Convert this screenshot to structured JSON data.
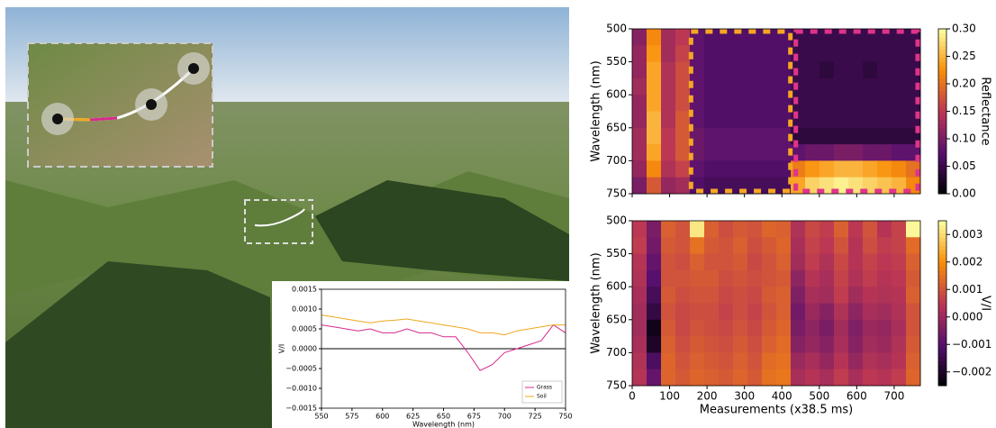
{
  "chart_data": [
    {
      "type": "line",
      "xlabel": "Wavelength (nm)",
      "ylabel": "V/I",
      "x": [
        550,
        560,
        570,
        580,
        590,
        600,
        610,
        620,
        630,
        640,
        650,
        660,
        670,
        680,
        690,
        700,
        710,
        720,
        730,
        740,
        750
      ],
      "series": [
        {
          "name": "Grass",
          "color": "#d62a8c",
          "values": [
            0.0006,
            0.00055,
            0.0005,
            0.00045,
            0.0005,
            0.0004,
            0.0004,
            0.0005,
            0.0004,
            0.0004,
            0.0003,
            0.0003,
            -0.0001,
            -0.00055,
            -0.0004,
            -0.0001,
            0.0,
            0.0001,
            0.0002,
            0.0006,
            0.0004
          ]
        },
        {
          "name": "Soil",
          "color": "#f0a81e",
          "values": [
            0.00085,
            0.0008,
            0.00075,
            0.0007,
            0.00065,
            0.0007,
            0.00072,
            0.00075,
            0.0007,
            0.00065,
            0.0006,
            0.00055,
            0.0005,
            0.0004,
            0.0004,
            0.00035,
            0.00045,
            0.0005,
            0.00055,
            0.0006,
            0.0006
          ]
        }
      ],
      "xlim": [
        550,
        750
      ],
      "xticks": [
        550,
        575,
        600,
        625,
        650,
        675,
        700,
        725,
        750
      ],
      "ylim": [
        -0.0015,
        0.0015
      ],
      "yticks": [
        {
          "value": -0.0015,
          "label": "−0.0015"
        },
        {
          "value": -0.001,
          "label": "−0.0010"
        },
        {
          "value": -0.0005,
          "label": "−0.0005"
        },
        {
          "value": 0,
          "label": "0.0000"
        },
        {
          "value": 0.0005,
          "label": "0.0005"
        },
        {
          "value": 0.001,
          "label": "0.0010"
        },
        {
          "value": 0.0015,
          "label": "0.0015"
        }
      ],
      "hline": 0,
      "legend": "lower right"
    },
    {
      "type": "heatmap",
      "ylabel": "Wavelength (nm)",
      "colorbar_label": "Reflectance",
      "colormap": "inferno",
      "bins_x": [
        0,
        38.5,
        77,
        115.5,
        154,
        192.5,
        231,
        269.5,
        308,
        346.5,
        385,
        423.5,
        462,
        500.5,
        539,
        577.5,
        616,
        654.5,
        693,
        731.5,
        770
      ],
      "bins_y": [
        500,
        525,
        550,
        575,
        600,
        625,
        650,
        675,
        700,
        725,
        750
      ],
      "values": [
        [
          0.11,
          0.22,
          0.13,
          0.15,
          0.08,
          0.07,
          0.07,
          0.07,
          0.07,
          0.07,
          0.07,
          0.05,
          0.05,
          0.05,
          0.05,
          0.05,
          0.05,
          0.05,
          0.05,
          0.05
        ],
        [
          0.12,
          0.23,
          0.13,
          0.16,
          0.08,
          0.07,
          0.07,
          0.07,
          0.07,
          0.07,
          0.07,
          0.05,
          0.05,
          0.05,
          0.05,
          0.05,
          0.05,
          0.05,
          0.05,
          0.05
        ],
        [
          0.12,
          0.24,
          0.14,
          0.17,
          0.08,
          0.07,
          0.07,
          0.07,
          0.07,
          0.07,
          0.07,
          0.05,
          0.05,
          0.04,
          0.05,
          0.05,
          0.04,
          0.05,
          0.05,
          0.05
        ],
        [
          0.13,
          0.24,
          0.14,
          0.17,
          0.08,
          0.07,
          0.07,
          0.07,
          0.07,
          0.07,
          0.07,
          0.05,
          0.05,
          0.05,
          0.05,
          0.05,
          0.05,
          0.05,
          0.05,
          0.05
        ],
        [
          0.12,
          0.24,
          0.14,
          0.17,
          0.08,
          0.07,
          0.07,
          0.07,
          0.07,
          0.07,
          0.07,
          0.05,
          0.05,
          0.05,
          0.05,
          0.05,
          0.05,
          0.05,
          0.05,
          0.05
        ],
        [
          0.12,
          0.25,
          0.14,
          0.18,
          0.08,
          0.07,
          0.07,
          0.07,
          0.07,
          0.07,
          0.07,
          0.05,
          0.05,
          0.05,
          0.05,
          0.05,
          0.05,
          0.05,
          0.05,
          0.05
        ],
        [
          0.13,
          0.25,
          0.15,
          0.18,
          0.09,
          0.08,
          0.08,
          0.08,
          0.08,
          0.08,
          0.08,
          0.04,
          0.04,
          0.04,
          0.04,
          0.04,
          0.04,
          0.04,
          0.04,
          0.04
        ],
        [
          0.13,
          0.24,
          0.15,
          0.18,
          0.09,
          0.08,
          0.08,
          0.08,
          0.08,
          0.08,
          0.08,
          0.08,
          0.09,
          0.09,
          0.1,
          0.1,
          0.09,
          0.09,
          0.08,
          0.08
        ],
        [
          0.12,
          0.22,
          0.14,
          0.16,
          0.08,
          0.07,
          0.07,
          0.07,
          0.07,
          0.07,
          0.07,
          0.21,
          0.23,
          0.24,
          0.25,
          0.25,
          0.24,
          0.23,
          0.22,
          0.2
        ],
        [
          0.1,
          0.18,
          0.12,
          0.13,
          0.07,
          0.06,
          0.06,
          0.06,
          0.06,
          0.06,
          0.06,
          0.24,
          0.27,
          0.28,
          0.29,
          0.28,
          0.27,
          0.26,
          0.25,
          0.22
        ]
      ],
      "xlim": [
        0,
        770
      ],
      "xticks": [
        0,
        100,
        200,
        300,
        400,
        500,
        600,
        700
      ],
      "show_xtick_labels": false,
      "ylim": [
        750,
        500
      ],
      "yticks": [
        500,
        550,
        600,
        650,
        700,
        750
      ],
      "clim": [
        0,
        0.3
      ],
      "cticks": [
        {
          "value": 0,
          "label": "0.00"
        },
        0.05,
        {
          "value": 0.1,
          "label": "0.10"
        },
        0.15,
        {
          "value": 0.2,
          "label": "0.20"
        },
        0.25,
        {
          "value": 0.3,
          "label": "0.30"
        }
      ],
      "regions": [
        {
          "x": [
            150,
            430
          ],
          "color": "#f5a623"
        },
        {
          "x": [
            430,
            770
          ],
          "color": "#e0338a"
        }
      ]
    },
    {
      "type": "heatmap",
      "xlabel": "Measurements (x38.5 ms)",
      "ylabel": "Wavelength (nm)",
      "colorbar_label": "V/I",
      "colormap": "inferno",
      "bins_x": [
        0,
        38.5,
        77,
        115.5,
        154,
        192.5,
        231,
        269.5,
        308,
        346.5,
        385,
        423.5,
        462,
        500.5,
        539,
        577.5,
        616,
        654.5,
        693,
        731.5,
        770
      ],
      "bins_y": [
        500,
        525,
        550,
        575,
        600,
        625,
        650,
        675,
        700,
        725,
        750
      ],
      "values": [
        [
          0.0005,
          -0.0005,
          0.0012,
          0.001,
          0.0032,
          0.0012,
          0.0009,
          0.0011,
          0.001,
          0.0013,
          0.0012,
          0.0003,
          0.0008,
          0.0006,
          0.0012,
          0.0005,
          0.001,
          0.0004,
          0.0007,
          0.0034
        ],
        [
          0.0006,
          -0.0006,
          0.0011,
          0.001,
          0.0015,
          0.0011,
          0.001,
          0.0012,
          0.0009,
          0.0011,
          0.0013,
          0.0002,
          0.0007,
          0.0005,
          0.001,
          0.0004,
          0.0009,
          0.0006,
          0.0007,
          0.0014
        ],
        [
          0.0004,
          -0.0008,
          0.001,
          0.0009,
          0.0012,
          0.001,
          0.001,
          0.0011,
          0.0008,
          0.001,
          0.0012,
          0.0001,
          0.0006,
          0.0003,
          0.0008,
          0.0004,
          0.0007,
          0.0005,
          0.0006,
          0.0012
        ],
        [
          0.0003,
          -0.001,
          0.001,
          0.001,
          0.0011,
          0.0011,
          0.0009,
          0.001,
          0.0009,
          0.001,
          0.0011,
          -0.0002,
          0.0004,
          0.0002,
          0.0007,
          0.0003,
          0.0006,
          0.0004,
          0.0005,
          0.0011
        ],
        [
          0.0002,
          -0.0013,
          0.0011,
          0.0009,
          0.001,
          0.001,
          0.0008,
          0.0009,
          0.0008,
          0.0011,
          0.0012,
          -0.0004,
          0.0002,
          0.0001,
          0.0006,
          0.0001,
          0.0004,
          0.0003,
          0.0004,
          0.0012
        ],
        [
          0.0001,
          -0.0016,
          0.001,
          0.0008,
          0.0009,
          0.0009,
          0.0007,
          0.0009,
          0.0007,
          0.001,
          0.0012,
          -0.0006,
          0.0,
          -0.0003,
          0.0003,
          -0.0002,
          0.0002,
          0.0001,
          0.0003,
          0.001
        ],
        [
          0.0001,
          -0.0022,
          0.0011,
          0.0008,
          0.001,
          0.0009,
          0.0008,
          0.001,
          0.0008,
          0.0011,
          0.0013,
          -0.0005,
          -0.0002,
          -0.0005,
          0.0001,
          -0.0004,
          0.0,
          -0.0001,
          0.0002,
          0.001
        ],
        [
          0.0002,
          -0.002,
          0.0012,
          0.0009,
          0.0011,
          0.001,
          0.0009,
          0.0011,
          0.0009,
          0.0012,
          0.0014,
          -0.0003,
          -0.0001,
          -0.0003,
          0.0002,
          -0.0003,
          0.0001,
          0.0,
          0.0003,
          0.0011
        ],
        [
          0.0003,
          -0.0012,
          0.0013,
          0.001,
          0.0012,
          0.0011,
          0.001,
          0.0012,
          0.001,
          0.0014,
          0.0015,
          0.0,
          0.0002,
          -0.0001,
          0.0004,
          -0.0001,
          0.0003,
          0.0002,
          0.0004,
          0.0012
        ],
        [
          0.0004,
          -0.0008,
          0.0013,
          0.0011,
          0.0013,
          0.0012,
          0.0011,
          0.0013,
          0.0011,
          0.0015,
          0.0016,
          0.0002,
          0.0004,
          0.0002,
          0.0006,
          0.0002,
          0.0005,
          0.0004,
          0.0006,
          0.0013
        ]
      ],
      "xlim": [
        0,
        770
      ],
      "xticks": [
        0,
        100,
        200,
        300,
        400,
        500,
        600,
        700
      ],
      "show_xtick_labels": true,
      "ylim": [
        750,
        500
      ],
      "yticks": [
        500,
        550,
        600,
        650,
        700,
        750
      ],
      "clim": [
        -0.0025,
        0.0035
      ],
      "cticks": [
        {
          "value": -0.002,
          "label": "−0.002"
        },
        {
          "value": -0.001,
          "label": "−0.001"
        },
        {
          "value": 0,
          "label": "0.000"
        },
        0.001,
        0.002,
        0.003
      ]
    }
  ]
}
